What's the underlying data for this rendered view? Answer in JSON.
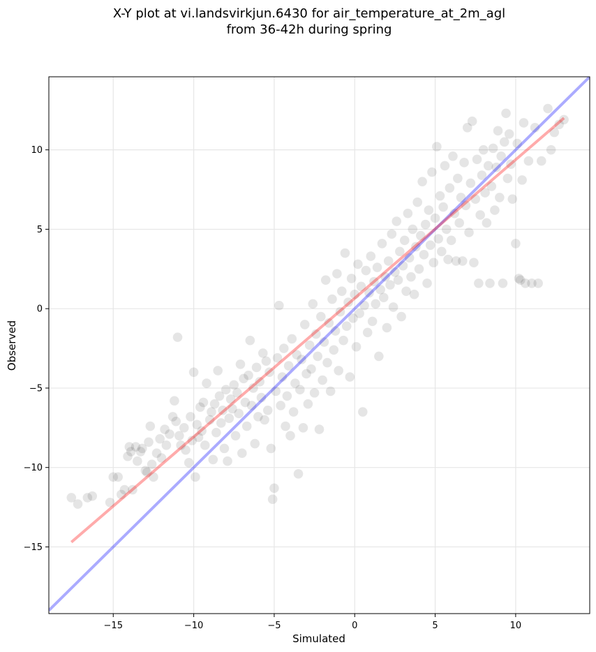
{
  "chart_data": {
    "type": "scatter",
    "title": "X-Y plot at vi.landsvirkjun.6430 for air_temperature_at_2m_agl",
    "subtitle": "from 36-42h during spring",
    "xlabel": "Simulated",
    "ylabel": "Observed",
    "xlim": [
      -19,
      14.6
    ],
    "ylim": [
      -19.2,
      14.6
    ],
    "xticks": [
      -15,
      -10,
      -5,
      0,
      5,
      10
    ],
    "yticks": [
      -15,
      -10,
      -5,
      0,
      5,
      10
    ],
    "xtick_labels": [
      "−15",
      "−10",
      "−5",
      "0",
      "5",
      "10"
    ],
    "ytick_labels": [
      "−15",
      "−10",
      "−5",
      "0",
      "5",
      "10"
    ],
    "grid": true,
    "colors": {
      "points": "#000000",
      "identity_line": "#0000ff",
      "regression_line": "#ff0000",
      "grid": "#e6e6e6"
    },
    "series": [
      {
        "values": [
          [
            -17.6,
            -11.9
          ],
          [
            -17.2,
            -12.3
          ],
          [
            -16.6,
            -11.9
          ],
          [
            -16.3,
            -11.8
          ],
          [
            -15.2,
            -12.2
          ],
          [
            -15.0,
            -10.6
          ],
          [
            -14.7,
            -10.6
          ],
          [
            -14.5,
            -11.7
          ],
          [
            -14.3,
            -11.4
          ],
          [
            -14.1,
            -9.3
          ],
          [
            -14.0,
            -8.7
          ],
          [
            -13.9,
            -9.0
          ],
          [
            -13.8,
            -11.4
          ],
          [
            -13.6,
            -8.7
          ],
          [
            -13.5,
            -9.6
          ],
          [
            -13.3,
            -9.0
          ],
          [
            -13.2,
            -8.8
          ],
          [
            -13.0,
            -10.2
          ],
          [
            -12.9,
            -10.3
          ],
          [
            -12.8,
            -8.4
          ],
          [
            -12.7,
            -7.4
          ],
          [
            -12.6,
            -9.8
          ],
          [
            -12.5,
            -10.6
          ],
          [
            -12.3,
            -9.1
          ],
          [
            -12.1,
            -8.2
          ],
          [
            -12.0,
            -9.4
          ],
          [
            -11.8,
            -7.6
          ],
          [
            -11.7,
            -8.6
          ],
          [
            -11.5,
            -7.9
          ],
          [
            -11.3,
            -6.8
          ],
          [
            -11.2,
            -5.8
          ],
          [
            -11.1,
            -7.1
          ],
          [
            -11.0,
            -1.8
          ],
          [
            -10.9,
            -8.0
          ],
          [
            -10.8,
            -8.6
          ],
          [
            -10.6,
            -7.5
          ],
          [
            -10.5,
            -8.9
          ],
          [
            -10.3,
            -9.7
          ],
          [
            -10.2,
            -6.8
          ],
          [
            -10.1,
            -8.3
          ],
          [
            -10.0,
            -4.0
          ],
          [
            -9.9,
            -10.6
          ],
          [
            -9.8,
            -7.3
          ],
          [
            -9.7,
            -8.1
          ],
          [
            -9.6,
            -6.2
          ],
          [
            -9.5,
            -7.7
          ],
          [
            -9.4,
            -5.9
          ],
          [
            -9.3,
            -8.6
          ],
          [
            -9.2,
            -4.7
          ],
          [
            -9.0,
            -7.0
          ],
          [
            -8.9,
            -6.5
          ],
          [
            -8.8,
            -9.5
          ],
          [
            -8.7,
            -6.0
          ],
          [
            -8.6,
            -7.8
          ],
          [
            -8.5,
            -3.9
          ],
          [
            -8.4,
            -5.5
          ],
          [
            -8.3,
            -7.2
          ],
          [
            -8.2,
            -6.4
          ],
          [
            -8.1,
            -8.8
          ],
          [
            -8.0,
            -5.1
          ],
          [
            -7.9,
            -9.6
          ],
          [
            -7.8,
            -6.9
          ],
          [
            -7.7,
            -5.7
          ],
          [
            -7.6,
            -6.3
          ],
          [
            -7.5,
            -4.8
          ],
          [
            -7.4,
            -8.0
          ],
          [
            -7.3,
            -5.3
          ],
          [
            -7.2,
            -6.6
          ],
          [
            -7.1,
            -3.5
          ],
          [
            -7.0,
            -9.1
          ],
          [
            -6.9,
            -4.4
          ],
          [
            -6.8,
            -5.9
          ],
          [
            -6.7,
            -7.4
          ],
          [
            -6.6,
            -4.2
          ],
          [
            -6.5,
            -2.0
          ],
          [
            -6.4,
            -6.1
          ],
          [
            -6.3,
            -5.0
          ],
          [
            -6.2,
            -8.5
          ],
          [
            -6.1,
            -3.7
          ],
          [
            -6.0,
            -6.8
          ],
          [
            -5.9,
            -4.6
          ],
          [
            -5.8,
            -5.6
          ],
          [
            -5.7,
            -2.8
          ],
          [
            -5.6,
            -7.0
          ],
          [
            -5.5,
            -3.3
          ],
          [
            -5.4,
            -6.4
          ],
          [
            -5.3,
            -4.0
          ],
          [
            -5.2,
            -8.8
          ],
          [
            -5.1,
            -12.0
          ],
          [
            -5.0,
            -11.3
          ],
          [
            -4.9,
            -5.2
          ],
          [
            -4.8,
            -3.1
          ],
          [
            -4.7,
            0.2
          ],
          [
            -4.6,
            -6.1
          ],
          [
            -4.5,
            -4.3
          ],
          [
            -4.4,
            -2.5
          ],
          [
            -4.3,
            -7.4
          ],
          [
            -4.2,
            -5.5
          ],
          [
            -4.1,
            -3.6
          ],
          [
            -4.0,
            -8.0
          ],
          [
            -3.9,
            -1.9
          ],
          [
            -3.8,
            -6.5
          ],
          [
            -3.7,
            -4.7
          ],
          [
            -3.6,
            -2.9
          ],
          [
            -3.5,
            -10.4
          ],
          [
            -3.4,
            -5.1
          ],
          [
            -3.3,
            -3.2
          ],
          [
            -3.2,
            -7.5
          ],
          [
            -3.1,
            -1.0
          ],
          [
            -3.0,
            -4.1
          ],
          [
            -2.9,
            -6.0
          ],
          [
            -2.8,
            -2.3
          ],
          [
            -2.7,
            -3.8
          ],
          [
            -2.6,
            0.3
          ],
          [
            -2.5,
            -5.3
          ],
          [
            -2.4,
            -1.6
          ],
          [
            -2.3,
            -3.0
          ],
          [
            -2.2,
            -7.6
          ],
          [
            -2.1,
            -0.5
          ],
          [
            -2.0,
            -4.5
          ],
          [
            -1.9,
            -2.1
          ],
          [
            -1.8,
            1.8
          ],
          [
            -1.7,
            -3.4
          ],
          [
            -1.6,
            -0.9
          ],
          [
            -1.5,
            -5.2
          ],
          [
            -1.4,
            0.6
          ],
          [
            -1.3,
            -2.6
          ],
          [
            -1.2,
            -1.4
          ],
          [
            -1.1,
            2.2
          ],
          [
            -1.0,
            -3.9
          ],
          [
            -0.9,
            -0.2
          ],
          [
            -0.8,
            1.1
          ],
          [
            -0.7,
            -2.0
          ],
          [
            -0.6,
            3.5
          ],
          [
            -0.5,
            -1.1
          ],
          [
            -0.4,
            0.4
          ],
          [
            -0.3,
            -4.3
          ],
          [
            -0.2,
            1.9
          ],
          [
            -0.1,
            -0.6
          ],
          [
            0.0,
            0.9
          ],
          [
            0.1,
            -2.4
          ],
          [
            0.2,
            2.8
          ],
          [
            0.3,
            -0.3
          ],
          [
            0.4,
            1.4
          ],
          [
            0.5,
            -6.5
          ],
          [
            0.6,
            0.2
          ],
          [
            0.7,
            2.4
          ],
          [
            0.8,
            -1.5
          ],
          [
            0.9,
            1.0
          ],
          [
            1.0,
            3.3
          ],
          [
            1.1,
            -0.8
          ],
          [
            1.2,
            1.7
          ],
          [
            1.3,
            0.3
          ],
          [
            1.4,
            2.6
          ],
          [
            1.5,
            -3.0
          ],
          [
            1.6,
            1.2
          ],
          [
            1.7,
            4.1
          ],
          [
            1.8,
            0.7
          ],
          [
            1.9,
            2.0
          ],
          [
            2.0,
            -1.2
          ],
          [
            2.1,
            3.0
          ],
          [
            2.2,
            1.5
          ],
          [
            2.3,
            4.7
          ],
          [
            2.4,
            0.1
          ],
          [
            2.5,
            2.3
          ],
          [
            2.6,
            5.5
          ],
          [
            2.7,
            1.8
          ],
          [
            2.8,
            3.6
          ],
          [
            2.9,
            -0.5
          ],
          [
            3.0,
            2.7
          ],
          [
            3.1,
            4.3
          ],
          [
            3.2,
            1.1
          ],
          [
            3.3,
            6.0
          ],
          [
            3.4,
            3.2
          ],
          [
            3.5,
            2.0
          ],
          [
            3.6,
            5.0
          ],
          [
            3.7,
            0.9
          ],
          [
            3.8,
            3.9
          ],
          [
            3.9,
            6.7
          ],
          [
            4.0,
            2.5
          ],
          [
            4.1,
            4.6
          ],
          [
            4.2,
            8.0
          ],
          [
            4.3,
            3.4
          ],
          [
            4.4,
            5.3
          ],
          [
            4.5,
            1.6
          ],
          [
            4.6,
            6.2
          ],
          [
            4.7,
            4.0
          ],
          [
            4.8,
            8.6
          ],
          [
            4.9,
            2.9
          ],
          [
            5.0,
            5.7
          ],
          [
            5.1,
            10.2
          ],
          [
            5.2,
            4.4
          ],
          [
            5.3,
            7.1
          ],
          [
            5.4,
            3.6
          ],
          [
            5.5,
            6.4
          ],
          [
            5.6,
            9.0
          ],
          [
            5.7,
            5.0
          ],
          [
            5.8,
            3.1
          ],
          [
            5.9,
            7.6
          ],
          [
            6.0,
            4.3
          ],
          [
            6.1,
            9.6
          ],
          [
            6.2,
            6.0
          ],
          [
            6.3,
            3.0
          ],
          [
            6.4,
            8.2
          ],
          [
            6.5,
            5.4
          ],
          [
            6.6,
            7.0
          ],
          [
            6.7,
            3.0
          ],
          [
            6.8,
            9.2
          ],
          [
            6.9,
            6.5
          ],
          [
            7.0,
            11.4
          ],
          [
            7.1,
            4.8
          ],
          [
            7.2,
            7.9
          ],
          [
            7.3,
            11.8
          ],
          [
            7.4,
            2.9
          ],
          [
            7.5,
            6.9
          ],
          [
            7.6,
            9.4
          ],
          [
            7.7,
            1.6
          ],
          [
            7.8,
            5.9
          ],
          [
            7.9,
            8.4
          ],
          [
            8.0,
            10.0
          ],
          [
            8.1,
            7.3
          ],
          [
            8.2,
            5.4
          ],
          [
            8.3,
            9.0
          ],
          [
            8.4,
            1.6
          ],
          [
            8.5,
            7.7
          ],
          [
            8.6,
            10.1
          ],
          [
            8.7,
            6.2
          ],
          [
            8.8,
            8.9
          ],
          [
            8.9,
            11.2
          ],
          [
            9.0,
            7.0
          ],
          [
            9.1,
            9.6
          ],
          [
            9.2,
            1.6
          ],
          [
            9.3,
            10.5
          ],
          [
            9.4,
            12.3
          ],
          [
            9.5,
            8.2
          ],
          [
            9.6,
            11.0
          ],
          [
            9.7,
            9.1
          ],
          [
            9.8,
            6.9
          ],
          [
            10.0,
            4.1
          ],
          [
            10.1,
            10.4
          ],
          [
            10.2,
            1.9
          ],
          [
            10.3,
            1.8
          ],
          [
            10.4,
            8.1
          ],
          [
            10.5,
            11.7
          ],
          [
            10.6,
            1.6
          ],
          [
            10.8,
            9.3
          ],
          [
            11.0,
            1.6
          ],
          [
            11.2,
            11.4
          ],
          [
            11.4,
            1.6
          ],
          [
            11.6,
            9.3
          ],
          [
            12.0,
            12.6
          ],
          [
            12.2,
            10.0
          ],
          [
            12.4,
            11.1
          ],
          [
            12.7,
            11.6
          ],
          [
            13.0,
            11.9
          ]
        ]
      }
    ],
    "identity_line": {
      "x": [
        -19,
        14.6
      ],
      "y": [
        -19,
        14.6
      ]
    },
    "regression_line": {
      "x": [
        -17.6,
        13.0
      ],
      "y": [
        -14.7,
        12.0
      ]
    }
  }
}
